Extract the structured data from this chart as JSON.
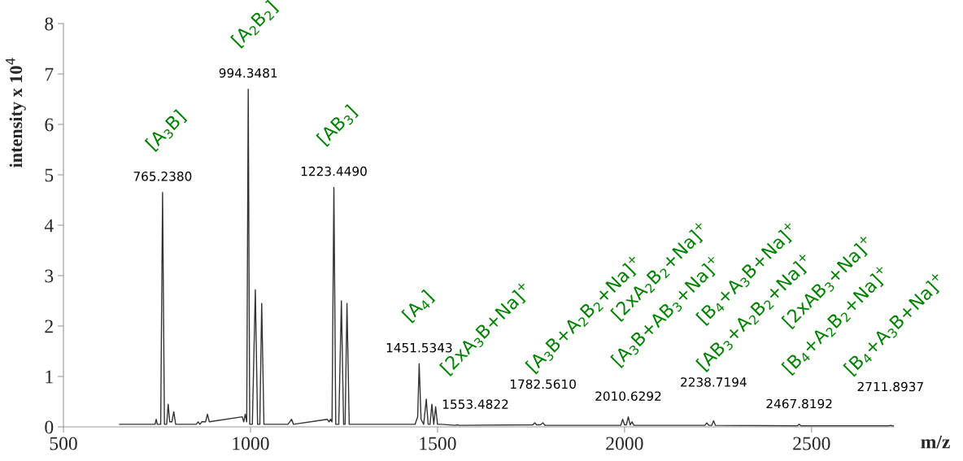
{
  "chart_data": {
    "type": "line",
    "xlabel": "m/z",
    "ylabel": "intensity x 10$^{4}$",
    "xlim": [
      500,
      2720
    ],
    "xticks": [
      500,
      1000,
      1500,
      2000,
      2500
    ],
    "ylim": [
      0,
      8
    ],
    "yticks": [
      0,
      1,
      2,
      3,
      4,
      5,
      6,
      7,
      8
    ],
    "grid": false,
    "series": [
      {
        "color": "#333333",
        "x": [
          650,
          745,
          748,
          751,
          760,
          765,
          770,
          776,
          780,
          784,
          790,
          795,
          800,
          855,
          860,
          865,
          870,
          880,
          885,
          890,
          978,
          982,
          986,
          990,
          994,
          998,
          1005,
          1013,
          1019,
          1025,
          1030,
          1036,
          1040,
          1100,
          1105,
          1110,
          1115,
          1205,
          1210,
          1214,
          1218,
          1223,
          1228,
          1236,
          1243,
          1249,
          1253,
          1258,
          1264,
          1270,
          1440,
          1447,
          1451,
          1456,
          1463,
          1470,
          1475,
          1480,
          1485,
          1490,
          1495,
          1500,
          1510,
          1548,
          1553,
          1558,
          1755,
          1760,
          1765,
          1775,
          1782,
          1787,
          1990,
          1995,
          2000,
          2005,
          2010,
          2015,
          2020,
          2025,
          2215,
          2220,
          2225,
          2233,
          2238,
          2243,
          2462,
          2467,
          2472,
          2706,
          2711,
          2716,
          2720
        ],
        "values": [
          0.05,
          0.05,
          0.15,
          0.05,
          0.05,
          4.65,
          0.05,
          0.05,
          0.45,
          0.1,
          0.1,
          0.3,
          0.05,
          0.05,
          0.1,
          0.05,
          0.1,
          0.1,
          0.25,
          0.1,
          0.2,
          0.1,
          0.25,
          0.1,
          6.7,
          0.05,
          0.05,
          2.72,
          0.05,
          0.05,
          2.45,
          0.05,
          0.05,
          0.05,
          0.1,
          0.15,
          0.05,
          0.15,
          0.1,
          0.15,
          0.1,
          4.75,
          0.05,
          0.05,
          2.5,
          0.05,
          0.05,
          2.45,
          0.05,
          0.05,
          0.05,
          0.2,
          1.25,
          0.15,
          0.05,
          0.55,
          0.05,
          0.05,
          0.45,
          0.05,
          0.4,
          0.05,
          0.05,
          0.03,
          0.04,
          0.03,
          0.04,
          0.08,
          0.04,
          0.04,
          0.08,
          0.03,
          0.03,
          0.15,
          0.04,
          0.04,
          0.2,
          0.04,
          0.1,
          0.03,
          0.03,
          0.08,
          0.03,
          0.03,
          0.12,
          0.03,
          0.02,
          0.05,
          0.02,
          0.02,
          0.03,
          0.02,
          0.02
        ]
      }
    ],
    "annotations": [
      {
        "text": "765.2380",
        "x": 765,
        "y": 4.65
      },
      {
        "text": "994.3481",
        "x": 994,
        "y": 6.7
      },
      {
        "text": "1223.4490",
        "x": 1223,
        "y": 4.75
      },
      {
        "text": "1451.5343",
        "x": 1451,
        "y": 1.25
      },
      {
        "text": "1553.4822",
        "x": 1553,
        "y": 0.04
      },
      {
        "text": "1782.5610",
        "x": 1782,
        "y": 0.08
      },
      {
        "text": "2010.6292",
        "x": 2010,
        "y": 0.2
      },
      {
        "text": "2238.7194",
        "x": 2238,
        "y": 0.12
      },
      {
        "text": "2467.8192",
        "x": 2467,
        "y": 0.05
      },
      {
        "text": "2711.8937",
        "x": 2711,
        "y": 0.03
      },
      {
        "text": "[A$_{3}$B]",
        "x": 765,
        "y": 4.65
      },
      {
        "text": "[A$_{2}$B$_{2}$]",
        "x": 994,
        "y": 6.7
      },
      {
        "text": "[AB$_{3}$]",
        "x": 1223,
        "y": 4.75
      },
      {
        "text": "[A$_{4}$]",
        "x": 1451,
        "y": 1.25
      },
      {
        "text": "[2xA$_{3}$B+Na]$^{+}$",
        "x": 1553,
        "y": 0.04
      },
      {
        "text": "[A$_{3}$B+A$_{2}$B$_{2}$+Na]$^{+}$",
        "x": 1782,
        "y": 0.08
      },
      "[2xA$_{2}$B$_{2}$+Na]$^{+}$",
      {
        "text": "[A$_{3}$B+AB$_{3}$+Na]$^{+}$",
        "x": 2010,
        "y": 0.2
      },
      "[B$_{4}$+A$_{3}$B+Na]$^{+}$",
      {
        "text": "[AB$_{3}$+A$_{2}$B$_{2}$+Na]$^{+}$",
        "x": 2238,
        "y": 0.12
      },
      "[2xAB$_{3}$+Na]$^{+}$",
      {
        "text": "[B$_{4}$+A$_{2}$B$_{2}$+Na]$^{+}$",
        "x": 2467,
        "y": 0.05
      },
      {
        "text": "[B$_{4}$+A$_{3}$B+Na]$^{+}$",
        "x": 2711,
        "y": 0.03
      }
    ]
  }
}
